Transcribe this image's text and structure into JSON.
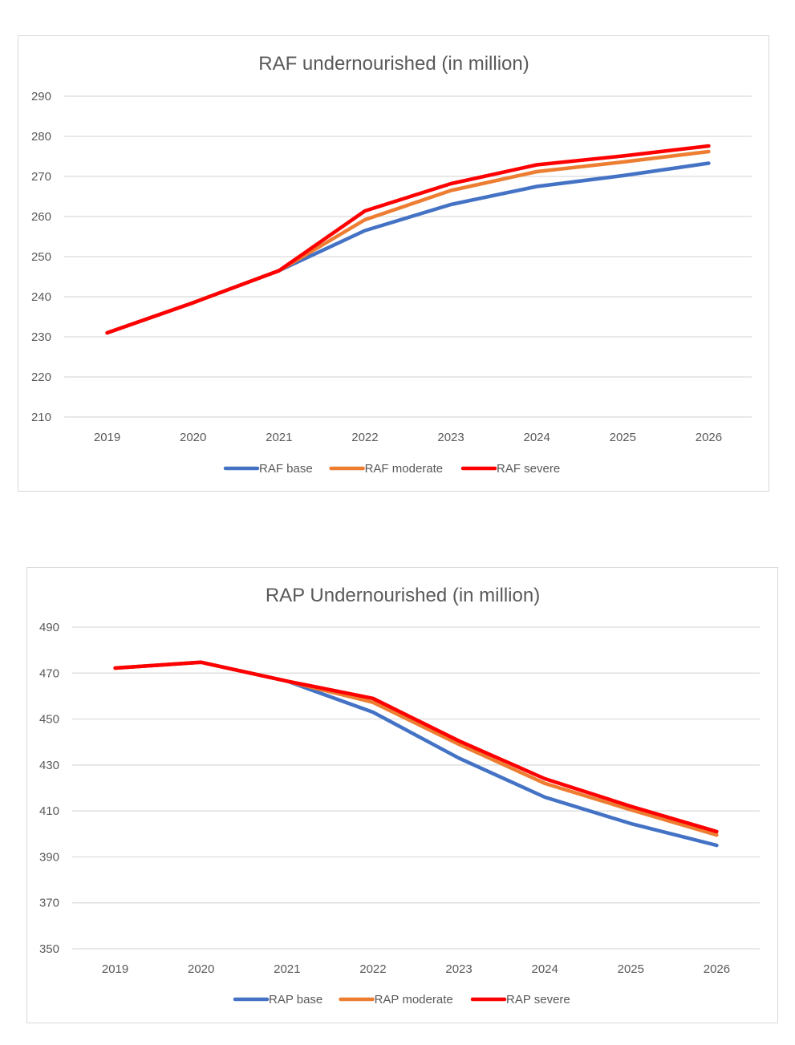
{
  "chart_data": [
    {
      "type": "line",
      "title": "RAF undernourished (in million)",
      "xlabel": "",
      "ylabel": "",
      "categories": [
        "2019",
        "2020",
        "2021",
        "2022",
        "2023",
        "2024",
        "2025",
        "2026"
      ],
      "ylim": [
        210,
        290
      ],
      "yticks": [
        210,
        220,
        230,
        240,
        250,
        260,
        270,
        280,
        290
      ],
      "grid": true,
      "legend_position": "bottom",
      "series": [
        {
          "name": "RAF base",
          "color": "#4472c4",
          "values": [
            231.0,
            238.5,
            246.5,
            256.5,
            263.0,
            267.5,
            270.2,
            273.3
          ]
        },
        {
          "name": "RAF moderate",
          "color": "#ed7d31",
          "values": [
            231.0,
            238.5,
            246.5,
            259.2,
            266.5,
            271.2,
            273.6,
            276.2
          ]
        },
        {
          "name": "RAF severe",
          "color": "#ff0000",
          "values": [
            231.0,
            238.5,
            246.5,
            261.4,
            268.2,
            272.9,
            275.1,
            277.6
          ]
        }
      ]
    },
    {
      "type": "line",
      "title": "RAP Undernourished (in million)",
      "xlabel": "",
      "ylabel": "",
      "categories": [
        "2019",
        "2020",
        "2021",
        "2022",
        "2023",
        "2024",
        "2025",
        "2026"
      ],
      "ylim": [
        350,
        490
      ],
      "yticks": [
        350,
        370,
        390,
        410,
        430,
        450,
        470,
        490
      ],
      "grid": true,
      "legend_position": "bottom",
      "series": [
        {
          "name": "RAP base",
          "color": "#4472c4",
          "values": [
            472.2,
            474.7,
            466.5,
            453.0,
            433.0,
            416.0,
            404.5,
            395.0
          ]
        },
        {
          "name": "RAP moderate",
          "color": "#ed7d31",
          "values": [
            472.2,
            474.7,
            466.5,
            457.3,
            439.0,
            422.0,
            410.5,
            399.5
          ]
        },
        {
          "name": "RAP severe",
          "color": "#ff0000",
          "values": [
            472.2,
            474.7,
            466.5,
            459.0,
            440.5,
            424.0,
            412.0,
            401.0
          ]
        }
      ]
    }
  ]
}
